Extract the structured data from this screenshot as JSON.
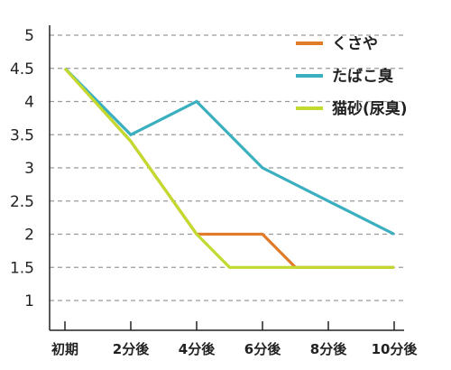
{
  "chart_data": {
    "type": "line",
    "title": "",
    "xlabel": "",
    "ylabel": "",
    "categories": [
      "初期",
      "2分後",
      "4分後",
      "6分後",
      "8分後",
      "10分後"
    ],
    "y_ticks": [
      "1",
      "1.5",
      "2",
      "2.5",
      "3",
      "3.5",
      "4",
      "4.5",
      "5"
    ],
    "ylim": [
      0.6,
      5.2
    ],
    "grid": true,
    "legend_position": "top-right",
    "series": [
      {
        "name": "くさや",
        "color": "#E07B29",
        "points": [
          [
            0,
            4.5
          ],
          [
            1,
            3.4
          ],
          [
            2,
            2.0
          ],
          [
            3,
            2.0
          ],
          [
            3.5,
            1.5
          ],
          [
            4,
            1.5
          ],
          [
            5,
            1.5
          ]
        ]
      },
      {
        "name": "たばこ臭",
        "color": "#3AAFBF",
        "points": [
          [
            0,
            4.5
          ],
          [
            1,
            3.5
          ],
          [
            2,
            4.0
          ],
          [
            3,
            3.0
          ],
          [
            4,
            2.5
          ],
          [
            5,
            2.0
          ]
        ]
      },
      {
        "name": "猫砂(尿臭)",
        "color": "#C2D92E",
        "points": [
          [
            0,
            4.5
          ],
          [
            1,
            3.4
          ],
          [
            2,
            2.0
          ],
          [
            2.5,
            1.5
          ],
          [
            3,
            1.5
          ],
          [
            4,
            1.5
          ],
          [
            5,
            1.5
          ]
        ]
      }
    ]
  }
}
